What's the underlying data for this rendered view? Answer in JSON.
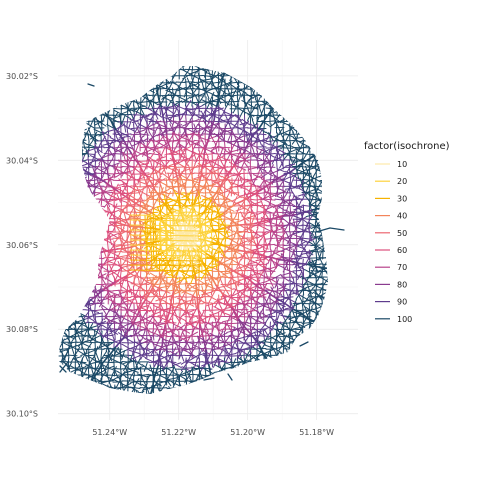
{
  "chart_data": {
    "type": "map",
    "x_axis": {
      "ticks": [
        {
          "value": -51.24,
          "label": "51.24°W"
        },
        {
          "value": -51.22,
          "label": "51.22°W"
        },
        {
          "value": -51.2,
          "label": "51.20°W"
        },
        {
          "value": -51.18,
          "label": "51.18°W"
        }
      ],
      "range": [
        -51.255,
        -51.168
      ]
    },
    "y_axis": {
      "ticks": [
        {
          "value": -30.02,
          "label": "30.02°S"
        },
        {
          "value": -30.04,
          "label": "30.04°S"
        },
        {
          "value": -30.06,
          "label": "30.06°S"
        },
        {
          "value": -30.08,
          "label": "30.08°S"
        },
        {
          "value": -30.1,
          "label": "30.10°S"
        }
      ],
      "range": [
        -30.1015,
        -30.0115
      ]
    },
    "grid": true,
    "legend": {
      "title": "factor(isochrone)",
      "position": "right",
      "entries": [
        {
          "label": "10",
          "color": "#fde9a9"
        },
        {
          "label": "20",
          "color": "#fdd23c"
        },
        {
          "label": "30",
          "color": "#f6b200"
        },
        {
          "label": "40",
          "color": "#f3845a"
        },
        {
          "label": "50",
          "color": "#ec6771"
        },
        {
          "label": "60",
          "color": "#dc4f7d"
        },
        {
          "label": "70",
          "color": "#b8428a"
        },
        {
          "label": "80",
          "color": "#8a3b8f"
        },
        {
          "label": "90",
          "color": "#5e3c8d"
        },
        {
          "label": "100",
          "color": "#1b4966"
        }
      ]
    },
    "origin": {
      "lon": -51.218,
      "lat": -30.058
    }
  }
}
